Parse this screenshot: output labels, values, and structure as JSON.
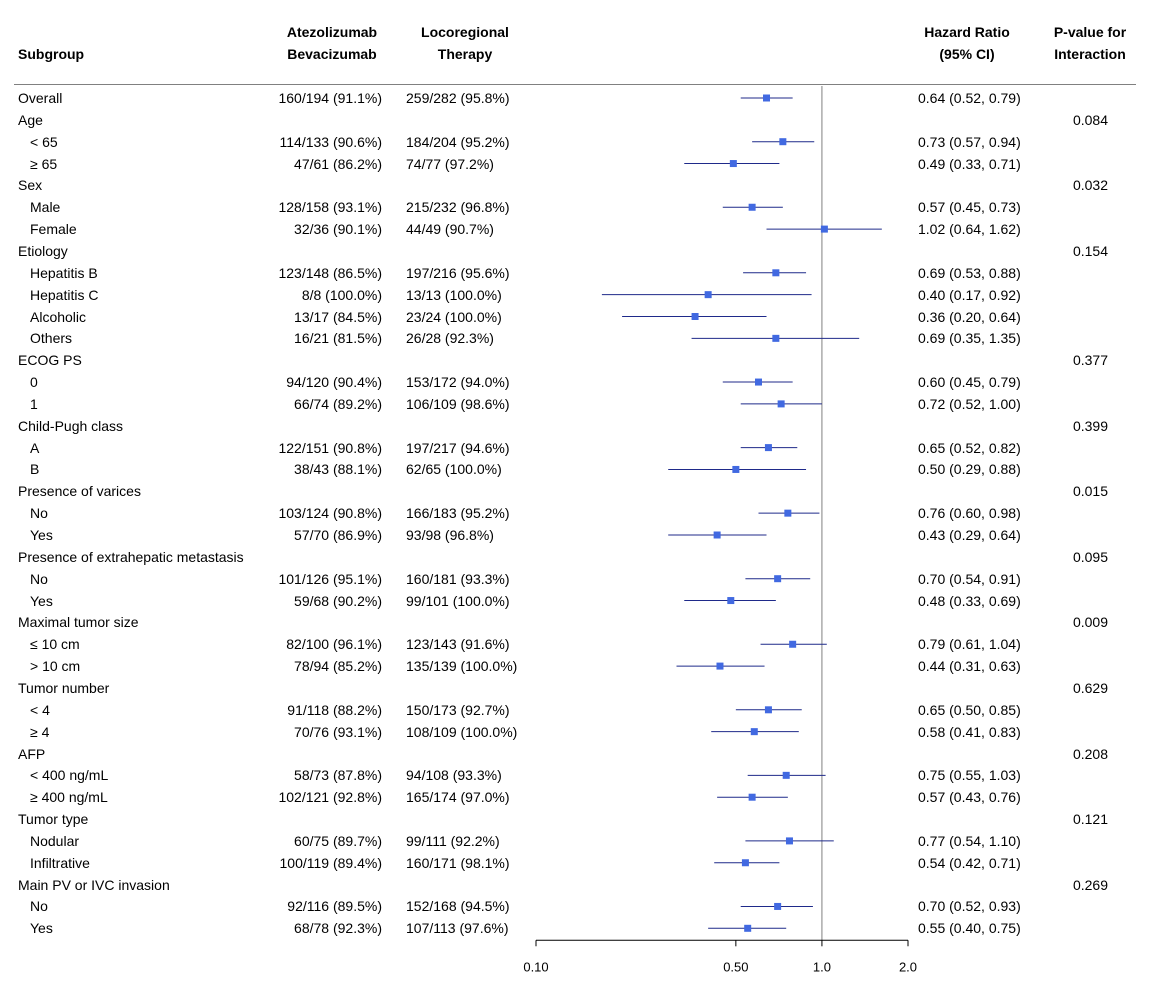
{
  "header": {
    "subgroup": "Subgroup",
    "atezo_line1": "Atezolizumab",
    "atezo_line2": "Bevacizumab",
    "loco_line1": "Locoregional",
    "loco_line2": "Therapy",
    "hr_line1": "Hazard Ratio",
    "hr_line2": "(95% CI)",
    "p_line1": "P-value for",
    "p_line2": "Interaction"
  },
  "colors": {
    "marker": "#4169E1",
    "ci_line": "#1F2A8A",
    "ref_line": "#808080",
    "axis": "#000000"
  },
  "chart_data": {
    "type": "forest",
    "scale": "log",
    "xlim": [
      0.1,
      2.0
    ],
    "reference_value": 1.0,
    "x_ticks": [
      0.1,
      0.5,
      1.0,
      2.0
    ],
    "x_tick_labels": [
      "0.10",
      "0.50",
      "1.0",
      "2.0"
    ],
    "rows": [
      {
        "label": "Overall",
        "indent": false,
        "atezo": "160/194 (91.1%)",
        "loco": "259/282 (95.8%)",
        "hr": 0.64,
        "lo": 0.52,
        "hi": 0.79,
        "hr_text": "0.64 (0.52, 0.79)",
        "p": ""
      },
      {
        "label": "Age",
        "indent": false,
        "p": "0.084"
      },
      {
        "label": "< 65",
        "indent": true,
        "atezo": "114/133 (90.6%)",
        "loco": "184/204 (95.2%)",
        "hr": 0.73,
        "lo": 0.57,
        "hi": 0.94,
        "hr_text": "0.73 (0.57, 0.94)"
      },
      {
        "label": "≥ 65",
        "indent": true,
        "atezo": "47/61 (86.2%)",
        "loco": "74/77 (97.2%)",
        "hr": 0.49,
        "lo": 0.33,
        "hi": 0.71,
        "hr_text": "0.49 (0.33, 0.71)"
      },
      {
        "label": "Sex",
        "indent": false,
        "p": "0.032"
      },
      {
        "label": "Male",
        "indent": true,
        "atezo": "128/158 (93.1%)",
        "loco": "215/232 (96.8%)",
        "hr": 0.57,
        "lo": 0.45,
        "hi": 0.73,
        "hr_text": "0.57 (0.45, 0.73)"
      },
      {
        "label": "Female",
        "indent": true,
        "atezo": "32/36 (90.1%)",
        "loco": "44/49 (90.7%)",
        "hr": 1.02,
        "lo": 0.64,
        "hi": 1.62,
        "hr_text": "1.02 (0.64, 1.62)"
      },
      {
        "label": "Etiology",
        "indent": false,
        "p": "0.154"
      },
      {
        "label": "Hepatitis B",
        "indent": true,
        "atezo": "123/148 (86.5%)",
        "loco": "197/216 (95.6%)",
        "hr": 0.69,
        "lo": 0.53,
        "hi": 0.88,
        "hr_text": "0.69 (0.53, 0.88)"
      },
      {
        "label": "Hepatitis C",
        "indent": true,
        "atezo": "8/8 (100.0%)",
        "loco": "13/13 (100.0%)",
        "hr": 0.4,
        "lo": 0.17,
        "hi": 0.92,
        "hr_text": "0.40 (0.17, 0.92)"
      },
      {
        "label": "Alcoholic",
        "indent": true,
        "atezo": "13/17 (84.5%)",
        "loco": "23/24 (100.0%)",
        "hr": 0.36,
        "lo": 0.2,
        "hi": 0.64,
        "hr_text": "0.36 (0.20, 0.64)"
      },
      {
        "label": "Others",
        "indent": true,
        "atezo": "16/21 (81.5%)",
        "loco": "26/28 (92.3%)",
        "hr": 0.69,
        "lo": 0.35,
        "hi": 1.35,
        "hr_text": "0.69 (0.35, 1.35)"
      },
      {
        "label": "ECOG PS",
        "indent": false,
        "p": "0.377"
      },
      {
        "label": "0",
        "indent": true,
        "atezo": "94/120 (90.4%)",
        "loco": "153/172 (94.0%)",
        "hr": 0.6,
        "lo": 0.45,
        "hi": 0.79,
        "hr_text": "0.60 (0.45, 0.79)"
      },
      {
        "label": "1",
        "indent": true,
        "atezo": "66/74 (89.2%)",
        "loco": "106/109 (98.6%)",
        "hr": 0.72,
        "lo": 0.52,
        "hi": 1.0,
        "hr_text": "0.72 (0.52, 1.00)"
      },
      {
        "label": "Child-Pugh class",
        "indent": false,
        "p": "0.399"
      },
      {
        "label": "A",
        "indent": true,
        "atezo": "122/151 (90.8%)",
        "loco": "197/217 (94.6%)",
        "hr": 0.65,
        "lo": 0.52,
        "hi": 0.82,
        "hr_text": "0.65 (0.52, 0.82)"
      },
      {
        "label": "B",
        "indent": true,
        "atezo": "38/43 (88.1%)",
        "loco": "62/65 (100.0%)",
        "hr": 0.5,
        "lo": 0.29,
        "hi": 0.88,
        "hr_text": "0.50 (0.29, 0.88)"
      },
      {
        "label": "Presence of varices",
        "indent": false,
        "p": "0.015"
      },
      {
        "label": "No",
        "indent": true,
        "atezo": "103/124 (90.8%)",
        "loco": "166/183 (95.2%)",
        "hr": 0.76,
        "lo": 0.6,
        "hi": 0.98,
        "hr_text": "0.76 (0.60, 0.98)"
      },
      {
        "label": "Yes",
        "indent": true,
        "atezo": "57/70 (86.9%)",
        "loco": "93/98 (96.8%)",
        "hr": 0.43,
        "lo": 0.29,
        "hi": 0.64,
        "hr_text": "0.43 (0.29, 0.64)"
      },
      {
        "label": "Presence of extrahepatic metastasis",
        "indent": false,
        "p": "0.095"
      },
      {
        "label": "No",
        "indent": true,
        "atezo": "101/126 (95.1%)",
        "loco": "160/181 (93.3%)",
        "hr": 0.7,
        "lo": 0.54,
        "hi": 0.91,
        "hr_text": "0.70 (0.54, 0.91)"
      },
      {
        "label": "Yes",
        "indent": true,
        "atezo": "59/68 (90.2%)",
        "loco": "99/101 (100.0%)",
        "hr": 0.48,
        "lo": 0.33,
        "hi": 0.69,
        "hr_text": "0.48 (0.33, 0.69)"
      },
      {
        "label": "Maximal tumor size",
        "indent": false,
        "p": "0.009"
      },
      {
        "label": "≤ 10 cm",
        "indent": true,
        "atezo": "82/100 (96.1%)",
        "loco": "123/143 (91.6%)",
        "hr": 0.79,
        "lo": 0.61,
        "hi": 1.04,
        "hr_text": "0.79 (0.61, 1.04)"
      },
      {
        "label": "> 10 cm",
        "indent": true,
        "atezo": "78/94 (85.2%)",
        "loco": "135/139 (100.0%)",
        "hr": 0.44,
        "lo": 0.31,
        "hi": 0.63,
        "hr_text": "0.44 (0.31, 0.63)"
      },
      {
        "label": "Tumor number",
        "indent": false,
        "p": "0.629"
      },
      {
        "label": "< 4",
        "indent": true,
        "atezo": "91/118 (88.2%)",
        "loco": "150/173 (92.7%)",
        "hr": 0.65,
        "lo": 0.5,
        "hi": 0.85,
        "hr_text": "0.65 (0.50, 0.85)"
      },
      {
        "label": "≥ 4",
        "indent": true,
        "atezo": "70/76 (93.1%)",
        "loco": "108/109 (100.0%)",
        "hr": 0.58,
        "lo": 0.41,
        "hi": 0.83,
        "hr_text": "0.58 (0.41, 0.83)"
      },
      {
        "label": "AFP",
        "indent": false,
        "p": "0.208"
      },
      {
        "label": "< 400 ng/mL",
        "indent": true,
        "atezo": "58/73 (87.8%)",
        "loco": "94/108 (93.3%)",
        "hr": 0.75,
        "lo": 0.55,
        "hi": 1.03,
        "hr_text": "0.75 (0.55, 1.03)"
      },
      {
        "label": "≥ 400 ng/mL",
        "indent": true,
        "atezo": "102/121 (92.8%)",
        "loco": "165/174 (97.0%)",
        "hr": 0.57,
        "lo": 0.43,
        "hi": 0.76,
        "hr_text": "0.57 (0.43, 0.76)"
      },
      {
        "label": "Tumor type",
        "indent": false,
        "p": "0.121"
      },
      {
        "label": "Nodular",
        "indent": true,
        "atezo": "60/75 (89.7%)",
        "loco": "99/111 (92.2%)",
        "hr": 0.77,
        "lo": 0.54,
        "hi": 1.1,
        "hr_text": "0.77 (0.54, 1.10)"
      },
      {
        "label": "Infiltrative",
        "indent": true,
        "atezo": "100/119 (89.4%)",
        "loco": "160/171 (98.1%)",
        "hr": 0.54,
        "lo": 0.42,
        "hi": 0.71,
        "hr_text": "0.54 (0.42, 0.71)"
      },
      {
        "label": "Main PV or IVC invasion",
        "indent": false,
        "p": "0.269"
      },
      {
        "label": "No",
        "indent": true,
        "atezo": "92/116 (89.5%)",
        "loco": "152/168 (94.5%)",
        "hr": 0.7,
        "lo": 0.52,
        "hi": 0.93,
        "hr_text": "0.70 (0.52, 0.93)"
      },
      {
        "label": "Yes",
        "indent": true,
        "atezo": "68/78 (92.3%)",
        "loco": "107/113 (97.6%)",
        "hr": 0.55,
        "lo": 0.4,
        "hi": 0.75,
        "hr_text": "0.55 (0.40, 0.75)"
      }
    ]
  }
}
